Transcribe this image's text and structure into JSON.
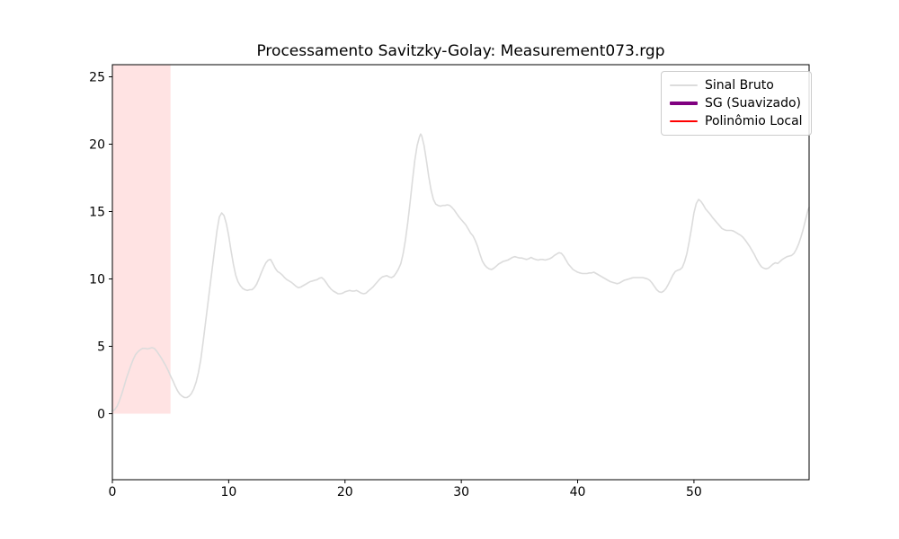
{
  "chart_data": {
    "type": "line",
    "title": "Processamento Savitzky-Golay: Measurement073.rgp",
    "xlabel": "",
    "ylabel": "",
    "xlim": [
      0,
      59.9
    ],
    "ylim": [
      -4.9,
      25.9
    ],
    "x_ticks": [
      0,
      10,
      20,
      30,
      40,
      50
    ],
    "y_ticks": [
      0,
      5,
      10,
      15,
      20,
      25
    ],
    "grid": false,
    "legend_position": "upper right",
    "axes_color": "#000000",
    "highlight_band": {
      "x0": 0,
      "x1": 5,
      "y0": 0,
      "color": "#ff0000",
      "alpha": 0.11
    },
    "series": [
      {
        "name": "Sinal Bruto",
        "color": "#dcdcdc",
        "line_width": 1.6,
        "visible": true,
        "points": [
          [
            0,
            0.2
          ],
          [
            0.2,
            0.3
          ],
          [
            0.4,
            0.55
          ],
          [
            0.6,
            0.95
          ],
          [
            0.8,
            1.45
          ],
          [
            1.0,
            2.0
          ],
          [
            1.2,
            2.6
          ],
          [
            1.4,
            3.1
          ],
          [
            1.6,
            3.6
          ],
          [
            1.8,
            4.05
          ],
          [
            2.0,
            4.4
          ],
          [
            2.2,
            4.6
          ],
          [
            2.4,
            4.75
          ],
          [
            2.6,
            4.85
          ],
          [
            2.8,
            4.85
          ],
          [
            3.0,
            4.8
          ],
          [
            3.2,
            4.85
          ],
          [
            3.4,
            4.9
          ],
          [
            3.6,
            4.85
          ],
          [
            3.8,
            4.65
          ],
          [
            4.0,
            4.4
          ],
          [
            4.2,
            4.15
          ],
          [
            4.4,
            3.85
          ],
          [
            4.6,
            3.55
          ],
          [
            4.8,
            3.2
          ],
          [
            5.0,
            2.8
          ],
          [
            5.2,
            2.45
          ],
          [
            5.4,
            2.05
          ],
          [
            5.6,
            1.7
          ],
          [
            5.8,
            1.45
          ],
          [
            6.0,
            1.3
          ],
          [
            6.2,
            1.2
          ],
          [
            6.4,
            1.2
          ],
          [
            6.6,
            1.3
          ],
          [
            6.8,
            1.5
          ],
          [
            7.0,
            1.85
          ],
          [
            7.2,
            2.35
          ],
          [
            7.4,
            3.05
          ],
          [
            7.6,
            4.0
          ],
          [
            7.8,
            5.3
          ],
          [
            8.0,
            6.7
          ],
          [
            8.2,
            8.1
          ],
          [
            8.4,
            9.5
          ],
          [
            8.6,
            10.9
          ],
          [
            8.8,
            12.3
          ],
          [
            9.0,
            13.6
          ],
          [
            9.2,
            14.6
          ],
          [
            9.4,
            14.9
          ],
          [
            9.6,
            14.7
          ],
          [
            9.8,
            14.1
          ],
          [
            10.0,
            13.2
          ],
          [
            10.2,
            12.1
          ],
          [
            10.4,
            11.1
          ],
          [
            10.6,
            10.3
          ],
          [
            10.8,
            9.8
          ],
          [
            11.0,
            9.5
          ],
          [
            11.2,
            9.3
          ],
          [
            11.4,
            9.2
          ],
          [
            11.6,
            9.15
          ],
          [
            11.8,
            9.2
          ],
          [
            12.0,
            9.2
          ],
          [
            12.2,
            9.35
          ],
          [
            12.4,
            9.6
          ],
          [
            12.6,
            10.0
          ],
          [
            12.8,
            10.45
          ],
          [
            13.0,
            10.85
          ],
          [
            13.2,
            11.2
          ],
          [
            13.4,
            11.4
          ],
          [
            13.6,
            11.45
          ],
          [
            13.8,
            11.15
          ],
          [
            14.0,
            10.8
          ],
          [
            14.2,
            10.55
          ],
          [
            14.4,
            10.45
          ],
          [
            14.6,
            10.3
          ],
          [
            14.8,
            10.1
          ],
          [
            15.0,
            9.95
          ],
          [
            15.2,
            9.85
          ],
          [
            15.4,
            9.75
          ],
          [
            15.6,
            9.6
          ],
          [
            15.8,
            9.45
          ],
          [
            16.0,
            9.35
          ],
          [
            16.2,
            9.4
          ],
          [
            16.4,
            9.5
          ],
          [
            16.6,
            9.6
          ],
          [
            16.8,
            9.7
          ],
          [
            17.0,
            9.8
          ],
          [
            17.2,
            9.85
          ],
          [
            17.4,
            9.9
          ],
          [
            17.6,
            9.95
          ],
          [
            17.8,
            10.05
          ],
          [
            18.0,
            10.1
          ],
          [
            18.2,
            9.95
          ],
          [
            18.4,
            9.7
          ],
          [
            18.6,
            9.45
          ],
          [
            18.8,
            9.25
          ],
          [
            19.0,
            9.1
          ],
          [
            19.2,
            9.0
          ],
          [
            19.4,
            8.9
          ],
          [
            19.6,
            8.9
          ],
          [
            19.8,
            8.95
          ],
          [
            20.0,
            9.05
          ],
          [
            20.2,
            9.1
          ],
          [
            20.4,
            9.15
          ],
          [
            20.6,
            9.1
          ],
          [
            20.8,
            9.1
          ],
          [
            21.0,
            9.15
          ],
          [
            21.2,
            9.05
          ],
          [
            21.4,
            8.95
          ],
          [
            21.6,
            8.9
          ],
          [
            21.8,
            8.95
          ],
          [
            22.0,
            9.1
          ],
          [
            22.2,
            9.25
          ],
          [
            22.4,
            9.4
          ],
          [
            22.6,
            9.6
          ],
          [
            22.8,
            9.8
          ],
          [
            23.0,
            10.0
          ],
          [
            23.2,
            10.15
          ],
          [
            23.4,
            10.2
          ],
          [
            23.6,
            10.25
          ],
          [
            23.8,
            10.15
          ],
          [
            24.0,
            10.1
          ],
          [
            24.2,
            10.2
          ],
          [
            24.4,
            10.45
          ],
          [
            24.6,
            10.75
          ],
          [
            24.8,
            11.15
          ],
          [
            25.0,
            11.9
          ],
          [
            25.2,
            12.9
          ],
          [
            25.4,
            14.2
          ],
          [
            25.6,
            15.7
          ],
          [
            25.8,
            17.3
          ],
          [
            26.0,
            18.8
          ],
          [
            26.2,
            19.9
          ],
          [
            26.4,
            20.55
          ],
          [
            26.5,
            20.75
          ],
          [
            26.6,
            20.6
          ],
          [
            26.8,
            19.9
          ],
          [
            27.0,
            18.8
          ],
          [
            27.2,
            17.6
          ],
          [
            27.4,
            16.6
          ],
          [
            27.6,
            15.9
          ],
          [
            27.8,
            15.55
          ],
          [
            28.0,
            15.45
          ],
          [
            28.2,
            15.4
          ],
          [
            28.4,
            15.45
          ],
          [
            28.6,
            15.45
          ],
          [
            28.8,
            15.5
          ],
          [
            29.0,
            15.45
          ],
          [
            29.2,
            15.3
          ],
          [
            29.4,
            15.1
          ],
          [
            29.6,
            14.85
          ],
          [
            29.8,
            14.6
          ],
          [
            30.0,
            14.4
          ],
          [
            30.2,
            14.2
          ],
          [
            30.4,
            14.0
          ],
          [
            30.6,
            13.7
          ],
          [
            30.8,
            13.4
          ],
          [
            31.0,
            13.2
          ],
          [
            31.2,
            12.85
          ],
          [
            31.4,
            12.4
          ],
          [
            31.6,
            11.85
          ],
          [
            31.8,
            11.35
          ],
          [
            32.0,
            11.05
          ],
          [
            32.2,
            10.85
          ],
          [
            32.4,
            10.75
          ],
          [
            32.6,
            10.7
          ],
          [
            32.8,
            10.8
          ],
          [
            33.0,
            10.95
          ],
          [
            33.2,
            11.1
          ],
          [
            33.4,
            11.2
          ],
          [
            33.6,
            11.3
          ],
          [
            33.8,
            11.35
          ],
          [
            34.0,
            11.4
          ],
          [
            34.2,
            11.5
          ],
          [
            34.4,
            11.6
          ],
          [
            34.6,
            11.65
          ],
          [
            34.8,
            11.6
          ],
          [
            35.0,
            11.55
          ],
          [
            35.2,
            11.55
          ],
          [
            35.4,
            11.5
          ],
          [
            35.6,
            11.45
          ],
          [
            35.8,
            11.5
          ],
          [
            36.0,
            11.6
          ],
          [
            36.2,
            11.5
          ],
          [
            36.4,
            11.45
          ],
          [
            36.6,
            11.4
          ],
          [
            36.8,
            11.45
          ],
          [
            37.0,
            11.45
          ],
          [
            37.2,
            11.4
          ],
          [
            37.4,
            11.45
          ],
          [
            37.6,
            11.5
          ],
          [
            37.8,
            11.6
          ],
          [
            38.0,
            11.75
          ],
          [
            38.2,
            11.85
          ],
          [
            38.4,
            11.95
          ],
          [
            38.6,
            11.9
          ],
          [
            38.8,
            11.7
          ],
          [
            39.0,
            11.4
          ],
          [
            39.2,
            11.1
          ],
          [
            39.4,
            10.9
          ],
          [
            39.6,
            10.7
          ],
          [
            39.8,
            10.6
          ],
          [
            40.0,
            10.5
          ],
          [
            40.2,
            10.45
          ],
          [
            40.4,
            10.4
          ],
          [
            40.6,
            10.4
          ],
          [
            40.8,
            10.4
          ],
          [
            41.0,
            10.45
          ],
          [
            41.2,
            10.45
          ],
          [
            41.4,
            10.5
          ],
          [
            41.6,
            10.4
          ],
          [
            41.8,
            10.3
          ],
          [
            42.0,
            10.2
          ],
          [
            42.2,
            10.1
          ],
          [
            42.4,
            10.0
          ],
          [
            42.6,
            9.9
          ],
          [
            42.8,
            9.8
          ],
          [
            43.0,
            9.75
          ],
          [
            43.2,
            9.7
          ],
          [
            43.4,
            9.65
          ],
          [
            43.6,
            9.7
          ],
          [
            43.8,
            9.8
          ],
          [
            44.0,
            9.9
          ],
          [
            44.2,
            9.95
          ],
          [
            44.4,
            10.0
          ],
          [
            44.6,
            10.05
          ],
          [
            44.8,
            10.1
          ],
          [
            45.0,
            10.1
          ],
          [
            45.2,
            10.1
          ],
          [
            45.4,
            10.1
          ],
          [
            45.6,
            10.1
          ],
          [
            45.8,
            10.05
          ],
          [
            46.0,
            10.0
          ],
          [
            46.2,
            9.9
          ],
          [
            46.4,
            9.7
          ],
          [
            46.6,
            9.45
          ],
          [
            46.8,
            9.2
          ],
          [
            47.0,
            9.05
          ],
          [
            47.2,
            9.0
          ],
          [
            47.4,
            9.1
          ],
          [
            47.6,
            9.3
          ],
          [
            47.8,
            9.6
          ],
          [
            48.0,
            9.95
          ],
          [
            48.2,
            10.3
          ],
          [
            48.4,
            10.55
          ],
          [
            48.6,
            10.65
          ],
          [
            48.8,
            10.7
          ],
          [
            49.0,
            10.85
          ],
          [
            49.2,
            11.3
          ],
          [
            49.4,
            11.9
          ],
          [
            49.6,
            12.8
          ],
          [
            49.8,
            13.8
          ],
          [
            50.0,
            14.9
          ],
          [
            50.2,
            15.6
          ],
          [
            50.4,
            15.9
          ],
          [
            50.6,
            15.75
          ],
          [
            50.8,
            15.5
          ],
          [
            51.0,
            15.2
          ],
          [
            51.2,
            15.0
          ],
          [
            51.4,
            14.8
          ],
          [
            51.6,
            14.55
          ],
          [
            51.8,
            14.35
          ],
          [
            52.0,
            14.15
          ],
          [
            52.2,
            13.95
          ],
          [
            52.4,
            13.75
          ],
          [
            52.6,
            13.65
          ],
          [
            52.8,
            13.6
          ],
          [
            53.0,
            13.6
          ],
          [
            53.2,
            13.6
          ],
          [
            53.4,
            13.55
          ],
          [
            53.6,
            13.45
          ],
          [
            53.8,
            13.35
          ],
          [
            54.0,
            13.25
          ],
          [
            54.2,
            13.1
          ],
          [
            54.4,
            12.9
          ],
          [
            54.6,
            12.65
          ],
          [
            54.8,
            12.4
          ],
          [
            55.0,
            12.1
          ],
          [
            55.2,
            11.8
          ],
          [
            55.4,
            11.45
          ],
          [
            55.6,
            11.15
          ],
          [
            55.8,
            10.9
          ],
          [
            56.0,
            10.8
          ],
          [
            56.2,
            10.75
          ],
          [
            56.4,
            10.8
          ],
          [
            56.6,
            10.95
          ],
          [
            56.8,
            11.1
          ],
          [
            57.0,
            11.2
          ],
          [
            57.2,
            11.15
          ],
          [
            57.4,
            11.3
          ],
          [
            57.6,
            11.45
          ],
          [
            57.8,
            11.55
          ],
          [
            58.0,
            11.65
          ],
          [
            58.2,
            11.7
          ],
          [
            58.4,
            11.75
          ],
          [
            58.6,
            11.9
          ],
          [
            58.8,
            12.2
          ],
          [
            59.0,
            12.6
          ],
          [
            59.2,
            13.1
          ],
          [
            59.4,
            13.7
          ],
          [
            59.6,
            14.4
          ],
          [
            59.8,
            15.1
          ],
          [
            59.9,
            15.3
          ]
        ]
      },
      {
        "name": "SG (Suavizado)",
        "color": "#800080",
        "line_width": 3.5,
        "visible": false,
        "points": []
      },
      {
        "name": "Polinômio Local",
        "color": "#ff0000",
        "line_width": 2,
        "visible": false,
        "points": []
      }
    ]
  }
}
